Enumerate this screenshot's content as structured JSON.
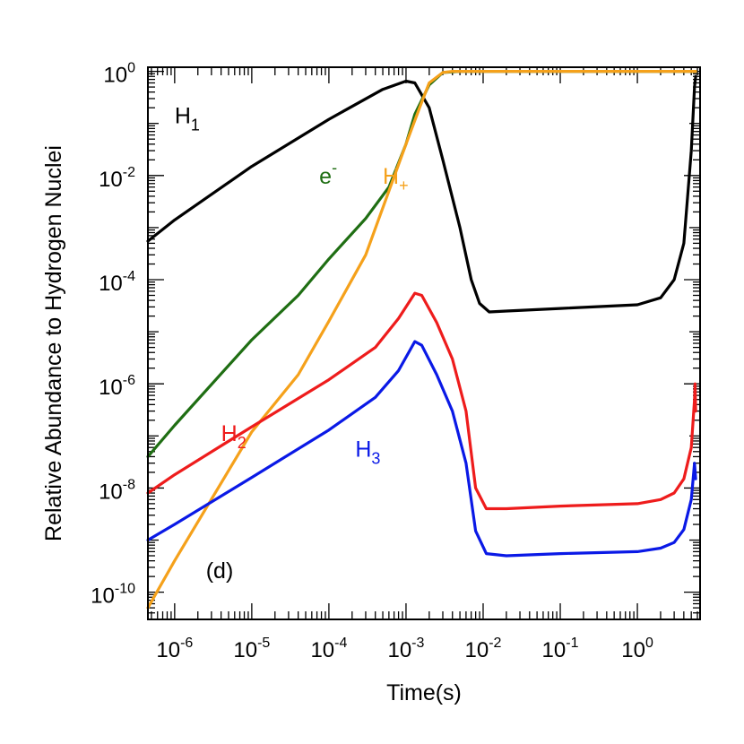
{
  "chart_data": {
    "type": "line",
    "xlabel": "Time(s)",
    "ylabel": "Relative Abundance to Hydrogen Nuclei",
    "x_scale": "log",
    "y_scale": "log",
    "xlim": [
      4.5e-07,
      6.5
    ],
    "ylim": [
      3e-11,
      1.2
    ],
    "grid": false,
    "panel_label": "(d)",
    "x_ticks": [
      {
        "value": 1e-06,
        "base": "10",
        "exp": "-6"
      },
      {
        "value": 1e-05,
        "base": "10",
        "exp": "-5"
      },
      {
        "value": 0.0001,
        "base": "10",
        "exp": "-4"
      },
      {
        "value": 0.001,
        "base": "10",
        "exp": "-3"
      },
      {
        "value": 0.01,
        "base": "10",
        "exp": "-2"
      },
      {
        "value": 0.1,
        "base": "10",
        "exp": "-1"
      },
      {
        "value": 1,
        "base": "10",
        "exp": "0"
      }
    ],
    "y_ticks": [
      {
        "value": 1,
        "base": "10",
        "exp": "0"
      },
      {
        "value": 0.01,
        "base": "10",
        "exp": "-2"
      },
      {
        "value": 0.0001,
        "base": "10",
        "exp": "-4"
      },
      {
        "value": 1e-06,
        "base": "10",
        "exp": "-6"
      },
      {
        "value": 1e-08,
        "base": "10",
        "exp": "-8"
      },
      {
        "value": 1e-10,
        "base": "10",
        "exp": "-10"
      }
    ],
    "series": [
      {
        "name": "H1",
        "label_main": "H",
        "label_sub": "1",
        "label_sup": "",
        "color": "#000000",
        "label_at": {
          "x": 1e-06,
          "y": 0.1
        },
        "points": [
          [
            4.5e-07,
            0.00055
          ],
          [
            1e-06,
            0.0014
          ],
          [
            1e-05,
            0.015
          ],
          [
            0.0001,
            0.12
          ],
          [
            0.0005,
            0.45
          ],
          [
            0.001,
            0.65
          ],
          [
            0.0013,
            0.6
          ],
          [
            0.002,
            0.2
          ],
          [
            0.003,
            0.02
          ],
          [
            0.005,
            0.001
          ],
          [
            0.007,
            0.0001
          ],
          [
            0.009,
            3.5e-05
          ],
          [
            0.012,
            2.4e-05
          ],
          [
            0.02,
            2.5e-05
          ],
          [
            0.1,
            2.8e-05
          ],
          [
            1,
            3.3e-05
          ],
          [
            2,
            4.5e-05
          ],
          [
            3,
            0.0001
          ],
          [
            4,
            0.0005
          ],
          [
            5,
            0.03
          ],
          [
            5.5,
            0.5
          ],
          [
            5.7,
            0.8
          ]
        ]
      },
      {
        "name": "e-",
        "label_main": "e",
        "label_sub": "",
        "label_sup": "-",
        "color": "#1f6e13",
        "label_at": {
          "x": 7.5e-05,
          "y": 0.007
        },
        "points": [
          [
            4.5e-07,
            4e-08
          ],
          [
            1e-06,
            1.6e-07
          ],
          [
            1e-05,
            7e-06
          ],
          [
            4e-05,
            5e-05
          ],
          [
            0.0001,
            0.00025
          ],
          [
            0.0003,
            0.0015
          ],
          [
            0.0006,
            0.006
          ],
          [
            0.001,
            0.04
          ],
          [
            0.0013,
            0.15
          ],
          [
            0.002,
            0.55
          ],
          [
            0.003,
            0.95
          ],
          [
            0.005,
            1
          ],
          [
            5.7,
            1
          ]
        ]
      },
      {
        "name": "H+",
        "label_main": "H",
        "label_sub": "+",
        "label_sup": "",
        "color": "#f5a11b",
        "label_at": {
          "x": 0.0005,
          "y": 0.007
        },
        "points": [
          [
            4.5e-07,
            5e-11
          ],
          [
            1e-06,
            4e-10
          ],
          [
            1e-05,
            1.2e-07
          ],
          [
            4e-05,
            1.5e-06
          ],
          [
            0.0001,
            1.6e-05
          ],
          [
            0.0003,
            0.0003
          ],
          [
            0.001,
            0.04
          ],
          [
            0.0015,
            0.2
          ],
          [
            0.002,
            0.6
          ],
          [
            0.003,
            0.95
          ],
          [
            0.004,
            1
          ],
          [
            5.7,
            1
          ]
        ]
      },
      {
        "name": "H2",
        "label_main": "H",
        "label_sub": "2",
        "label_sup": "",
        "color": "#ee1c1c",
        "label_at": {
          "x": 4e-06,
          "y": 8e-08
        },
        "points": [
          [
            4.5e-07,
            8e-09
          ],
          [
            1e-06,
            1.8e-08
          ],
          [
            1e-05,
            1.5e-07
          ],
          [
            0.0001,
            1.2e-06
          ],
          [
            0.0004,
            5e-06
          ],
          [
            0.0008,
            1.8e-05
          ],
          [
            0.0013,
            5.5e-05
          ],
          [
            0.0016,
            5e-05
          ],
          [
            0.0025,
            1.5e-05
          ],
          [
            0.004,
            3e-06
          ],
          [
            0.006,
            3e-07
          ],
          [
            0.008,
            1e-08
          ],
          [
            0.011,
            4e-09
          ],
          [
            0.02,
            4e-09
          ],
          [
            0.1,
            4.5e-09
          ],
          [
            1,
            5e-09
          ],
          [
            2,
            6e-09
          ],
          [
            3,
            8e-09
          ],
          [
            4,
            1.5e-08
          ],
          [
            5,
            6e-08
          ],
          [
            5.5,
            5e-07
          ],
          [
            5.6,
            1e-06
          ],
          [
            5.7,
            3e-07
          ]
        ]
      },
      {
        "name": "H3",
        "label_main": "H",
        "label_sub": "3",
        "label_sup": "",
        "color": "#0a19e6",
        "label_at": {
          "x": 0.00022,
          "y": 4e-08
        },
        "points": [
          [
            4.5e-07,
            1e-09
          ],
          [
            1e-06,
            2e-09
          ],
          [
            1e-05,
            1.6e-08
          ],
          [
            0.0001,
            1.3e-07
          ],
          [
            0.0004,
            5.5e-07
          ],
          [
            0.0008,
            1.8e-06
          ],
          [
            0.0013,
            6.5e-06
          ],
          [
            0.0016,
            5.5e-06
          ],
          [
            0.0025,
            1.5e-06
          ],
          [
            0.004,
            3e-07
          ],
          [
            0.006,
            3e-08
          ],
          [
            0.008,
            1.5e-09
          ],
          [
            0.011,
            5.5e-10
          ],
          [
            0.02,
            5e-10
          ],
          [
            0.1,
            5.5e-10
          ],
          [
            1,
            6e-10
          ],
          [
            2,
            7e-10
          ],
          [
            3,
            9e-10
          ],
          [
            4,
            1.6e-09
          ],
          [
            5,
            6e-09
          ],
          [
            5.5,
            3e-08
          ],
          [
            5.7,
            1.5e-08
          ]
        ]
      }
    ]
  }
}
